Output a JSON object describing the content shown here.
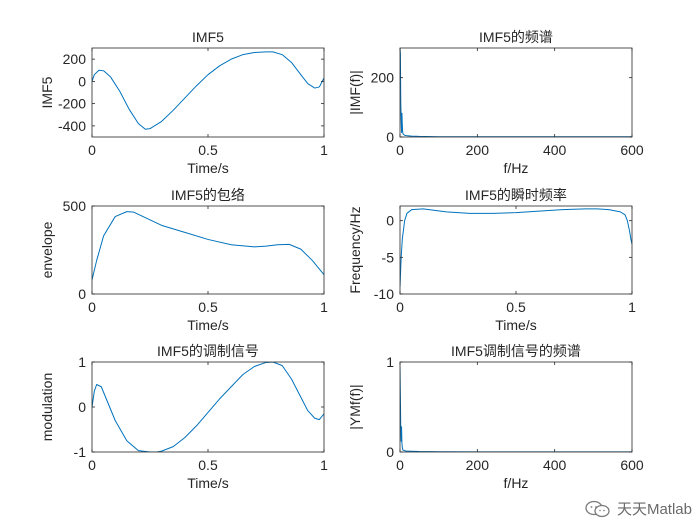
{
  "chart_data": [
    {
      "type": "line",
      "title": "IMF5",
      "xlabel": "Time/s",
      "ylabel": "IMF5",
      "xlim": [
        0,
        1
      ],
      "ylim": [
        -500,
        300
      ],
      "xticks": [
        0,
        0.5,
        1
      ],
      "yticks": [
        200,
        0,
        -200,
        -400
      ],
      "grid": false,
      "series": [
        {
          "x": [
            0,
            0.01,
            0.03,
            0.05,
            0.08,
            0.12,
            0.16,
            0.2,
            0.23,
            0.25,
            0.3,
            0.35,
            0.4,
            0.45,
            0.5,
            0.55,
            0.6,
            0.65,
            0.7,
            0.75,
            0.78,
            0.82,
            0.86,
            0.9,
            0.93,
            0.96,
            0.98,
            1.0
          ],
          "y": [
            0,
            60,
            100,
            95,
            40,
            -90,
            -250,
            -380,
            -430,
            -425,
            -360,
            -260,
            -150,
            -40,
            60,
            140,
            200,
            240,
            260,
            265,
            265,
            240,
            170,
            60,
            -20,
            -60,
            -50,
            30
          ]
        }
      ]
    },
    {
      "type": "line",
      "title": "IMF5的频谱",
      "xlabel": "f/Hz",
      "ylabel": "|IMF(f)|",
      "xlim": [
        0,
        600
      ],
      "ylim": [
        0,
        300
      ],
      "xticks": [
        0,
        200,
        400,
        600
      ],
      "yticks": [
        0,
        200
      ],
      "grid": false,
      "series": [
        {
          "x": [
            0,
            1,
            2,
            3,
            4,
            5,
            6,
            7,
            8,
            10,
            12,
            15,
            20,
            30,
            50,
            100,
            200,
            300,
            400,
            500,
            600
          ],
          "y": [
            300,
            280,
            120,
            60,
            15,
            80,
            40,
            15,
            10,
            8,
            6,
            5,
            4,
            3,
            2,
            1,
            1,
            1,
            1,
            1,
            1
          ]
        }
      ]
    },
    {
      "type": "line",
      "title": "IMF5的包络",
      "xlabel": "Time/s",
      "ylabel": "envelope",
      "xlim": [
        0,
        1
      ],
      "ylim": [
        0,
        500
      ],
      "xticks": [
        0,
        0.5,
        1
      ],
      "yticks": [
        0,
        500
      ],
      "grid": false,
      "series": [
        {
          "x": [
            0,
            0.02,
            0.05,
            0.1,
            0.15,
            0.18,
            0.22,
            0.3,
            0.4,
            0.5,
            0.6,
            0.7,
            0.75,
            0.8,
            0.85,
            0.9,
            0.95,
            1.0
          ],
          "y": [
            80,
            190,
            330,
            440,
            468,
            465,
            440,
            390,
            350,
            310,
            280,
            268,
            272,
            280,
            282,
            255,
            190,
            110
          ]
        }
      ]
    },
    {
      "type": "line",
      "title": "IMF5的瞬时频率",
      "xlabel": "Time/s",
      "ylabel": "Frequency/Hz",
      "xlim": [
        0,
        1
      ],
      "ylim": [
        -10,
        2
      ],
      "xticks": [
        0,
        0.5,
        1
      ],
      "yticks": [
        0,
        -5,
        -10
      ],
      "grid": false,
      "series": [
        {
          "x": [
            0,
            0.005,
            0.01,
            0.02,
            0.03,
            0.05,
            0.1,
            0.15,
            0.2,
            0.3,
            0.4,
            0.5,
            0.6,
            0.7,
            0.8,
            0.85,
            0.9,
            0.95,
            0.97,
            0.98,
            0.99,
            0.995,
            1.0
          ],
          "y": [
            -9,
            -5,
            -2.5,
            0,
            1,
            1.5,
            1.6,
            1.4,
            1.2,
            1.0,
            1.0,
            1.1,
            1.3,
            1.5,
            1.6,
            1.6,
            1.5,
            1.2,
            0.8,
            0,
            -1.5,
            -2.5,
            -3.2
          ]
        }
      ]
    },
    {
      "type": "line",
      "title": "IMF5的调制信号",
      "xlabel": "Time/s",
      "ylabel": "modulation",
      "xlim": [
        0,
        1
      ],
      "ylim": [
        -1,
        1
      ],
      "xticks": [
        0,
        0.5,
        1
      ],
      "yticks": [
        1,
        0,
        -1
      ],
      "grid": false,
      "series": [
        {
          "x": [
            0,
            0.01,
            0.02,
            0.04,
            0.06,
            0.1,
            0.15,
            0.2,
            0.25,
            0.28,
            0.3,
            0.35,
            0.4,
            0.45,
            0.5,
            0.55,
            0.6,
            0.65,
            0.7,
            0.75,
            0.78,
            0.82,
            0.86,
            0.9,
            0.93,
            0.96,
            0.98,
            1.0
          ],
          "y": [
            0,
            0.35,
            0.5,
            0.45,
            0.2,
            -0.3,
            -0.75,
            -0.97,
            -1.0,
            -1.0,
            -0.98,
            -0.88,
            -0.68,
            -0.42,
            -0.12,
            0.18,
            0.45,
            0.72,
            0.9,
            0.99,
            1.0,
            0.92,
            0.62,
            0.22,
            -0.08,
            -0.25,
            -0.28,
            -0.15
          ]
        }
      ]
    },
    {
      "type": "line",
      "title": "IMF5调制信号的频谱",
      "xlabel": "f/Hz",
      "ylabel": "|YMf(f)|",
      "xlim": [
        0,
        600
      ],
      "ylim": [
        0,
        1
      ],
      "xticks": [
        0,
        200,
        400,
        600
      ],
      "yticks": [
        0,
        1
      ],
      "grid": false,
      "series": [
        {
          "x": [
            0,
            1,
            2,
            3,
            4,
            5,
            6,
            7,
            8,
            10,
            12,
            15,
            20,
            30,
            50,
            100,
            200,
            300,
            400,
            500,
            600
          ],
          "y": [
            0.95,
            0.6,
            0.25,
            0.12,
            0.28,
            0.1,
            0.05,
            0.03,
            0.02,
            0.02,
            0.015,
            0.01,
            0.01,
            0.008,
            0.005,
            0.003,
            0.002,
            0.002,
            0.002,
            0.002,
            0.002
          ]
        }
      ]
    }
  ],
  "watermark": {
    "text": "天天Matlab",
    "icon": "wechat-icon"
  },
  "colors": {
    "line": "#0072BD",
    "axes": "#262626"
  }
}
